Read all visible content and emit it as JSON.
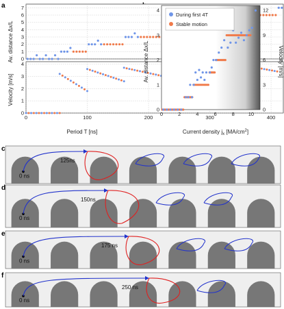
{
  "panels": {
    "a": "a",
    "b": "b",
    "c": "c",
    "d": "d",
    "e": "e",
    "f": "f"
  },
  "colors": {
    "transient": "#6f95e8",
    "stable": "#f07a4a",
    "trajectory_before": "#2233cc",
    "trajectory_after": "#e02020",
    "track": "#777777",
    "track_face": "#efefef"
  },
  "chart_data": [
    {
      "id": "a-top",
      "type": "scatter",
      "xlabel": "",
      "ylabel": "Av. distance Δx/L",
      "xlim": [
        0,
        420
      ],
      "ylim": [
        0,
        7.5
      ],
      "x_ticks": [
        0,
        100,
        200,
        300,
        400
      ],
      "y_ticks": [
        0,
        1,
        2,
        3,
        4,
        5,
        6,
        7
      ],
      "y_tick_labels": [
        "0",
        "1",
        "2",
        "3",
        "4",
        "5",
        "6",
        "7"
      ],
      "grid": true,
      "steps": [
        {
          "x0": 0,
          "x1": 55,
          "y": 0
        },
        {
          "x0": 55,
          "x1": 100,
          "y": 1
        },
        {
          "x0": 100,
          "x1": 160,
          "y": 2
        },
        {
          "x0": 160,
          "x1": 225,
          "y": 3
        },
        {
          "x0": 225,
          "x1": 290,
          "y": 4
        },
        {
          "x0": 290,
          "x1": 355,
          "y": 5
        },
        {
          "x0": 355,
          "x1": 410,
          "y": 6
        },
        {
          "x0": 410,
          "x1": 420,
          "y": 7
        }
      ]
    },
    {
      "id": "a-bottom",
      "type": "scatter",
      "xlabel": "Period T [ns]",
      "ylabel": "Velocity [m/s]",
      "xlim": [
        0,
        420
      ],
      "ylim": [
        0,
        4.2
      ],
      "x_ticks": [
        0,
        100,
        200,
        300,
        400
      ],
      "x_tick_labels": [
        "0",
        "100",
        "200",
        "300",
        "400"
      ],
      "y_ticks": [
        0,
        1,
        2,
        3,
        4
      ],
      "y_tick_labels": [
        "0",
        "1",
        "2",
        "3",
        "4"
      ],
      "grid": true,
      "segments": [
        {
          "x0": 0,
          "x1": 55,
          "y0": 0,
          "y1": 0
        },
        {
          "x0": 55,
          "x1": 100,
          "y0": 3.2,
          "y1": 1.8
        },
        {
          "x0": 100,
          "x1": 160,
          "y0": 3.6,
          "y1": 2.6
        },
        {
          "x0": 160,
          "x1": 225,
          "y0": 3.7,
          "y1": 3.0
        },
        {
          "x0": 225,
          "x1": 290,
          "y0": 3.8,
          "y1": 3.2
        },
        {
          "x0": 290,
          "x1": 355,
          "y0": 3.9,
          "y1": 3.3
        },
        {
          "x0": 355,
          "x1": 410,
          "y0": 3.9,
          "y1": 3.4
        }
      ]
    },
    {
      "id": "b",
      "type": "scatter",
      "xlabel": "Current density j",
      "xlabel_sub": "x",
      "xlabel_unit": " [MA/cm",
      "xlabel_sup": "2",
      "xlabel_end": "]",
      "ylabel": "Av. distance Δx/L",
      "ylabel_right": "Velocity [m/s]",
      "xlim": [
        0,
        11
      ],
      "ylim": [
        0,
        4.2
      ],
      "x_ticks": [
        0,
        2,
        4,
        6,
        8,
        10
      ],
      "x_tick_labels": [
        "0",
        "2",
        "4",
        "6",
        "8",
        "10"
      ],
      "y_ticks": [
        0,
        1,
        2,
        3,
        4
      ],
      "y_tick_labels": [
        "0",
        "1",
        "2",
        "3",
        "4"
      ],
      "y_ticks_right": [
        0,
        3,
        6,
        9,
        12
      ],
      "y_tick_labels_right": [
        "0",
        "3",
        "6",
        "9",
        "12"
      ],
      "legend": [
        "During first 4T",
        "Stable motion"
      ],
      "legend_position": "top-left",
      "stable_steps": [
        {
          "x0": 0,
          "x1": 2.5,
          "y": 0
        },
        {
          "x0": 2.5,
          "x1": 3.5,
          "y": 0.5
        },
        {
          "x0": 3.5,
          "x1": 5.3,
          "y": 1
        },
        {
          "x0": 5.3,
          "x1": 6,
          "y": 1.5
        },
        {
          "x0": 6,
          "x1": 7.2,
          "y": 2
        },
        {
          "x0": 7.2,
          "x1": 10,
          "y": 3
        }
      ],
      "transient_points": [
        [
          0.2,
          0
        ],
        [
          0.6,
          0
        ],
        [
          1.0,
          0
        ],
        [
          1.4,
          0
        ],
        [
          1.8,
          0
        ],
        [
          2.2,
          0
        ],
        [
          2.7,
          0.5
        ],
        [
          3.0,
          0.5
        ],
        [
          3.2,
          1.0
        ],
        [
          3.4,
          0.5
        ],
        [
          3.6,
          1.0
        ],
        [
          3.8,
          1.5
        ],
        [
          4.0,
          1.2
        ],
        [
          4.2,
          1.6
        ],
        [
          4.4,
          1.3
        ],
        [
          4.6,
          1.5
        ],
        [
          4.8,
          1.2
        ],
        [
          5.0,
          1.5
        ],
        [
          5.4,
          1.5
        ],
        [
          5.6,
          1.7
        ],
        [
          5.8,
          2.0
        ],
        [
          6.1,
          2.0
        ],
        [
          6.4,
          2.3
        ],
        [
          6.7,
          2.5
        ],
        [
          7.0,
          2.8
        ],
        [
          7.4,
          2.5
        ],
        [
          7.7,
          2.7
        ],
        [
          8.0,
          3.2
        ],
        [
          8.3,
          2.7
        ],
        [
          8.6,
          2.9
        ],
        [
          8.9,
          3.1
        ],
        [
          9.2,
          2.8
        ],
        [
          9.5,
          3.0
        ],
        [
          9.8,
          3.2
        ],
        [
          10.1,
          3.3
        ],
        [
          10.5,
          4.0
        ]
      ]
    }
  ],
  "sequences": [
    {
      "id": "c",
      "label": "0 ns",
      "time": "125ns"
    },
    {
      "id": "d",
      "label": "0 ns",
      "time": "150ns"
    },
    {
      "id": "e",
      "label": "0 ns",
      "time": "175 ns"
    },
    {
      "id": "f",
      "label": "0 ns",
      "time": "250 ns"
    }
  ]
}
